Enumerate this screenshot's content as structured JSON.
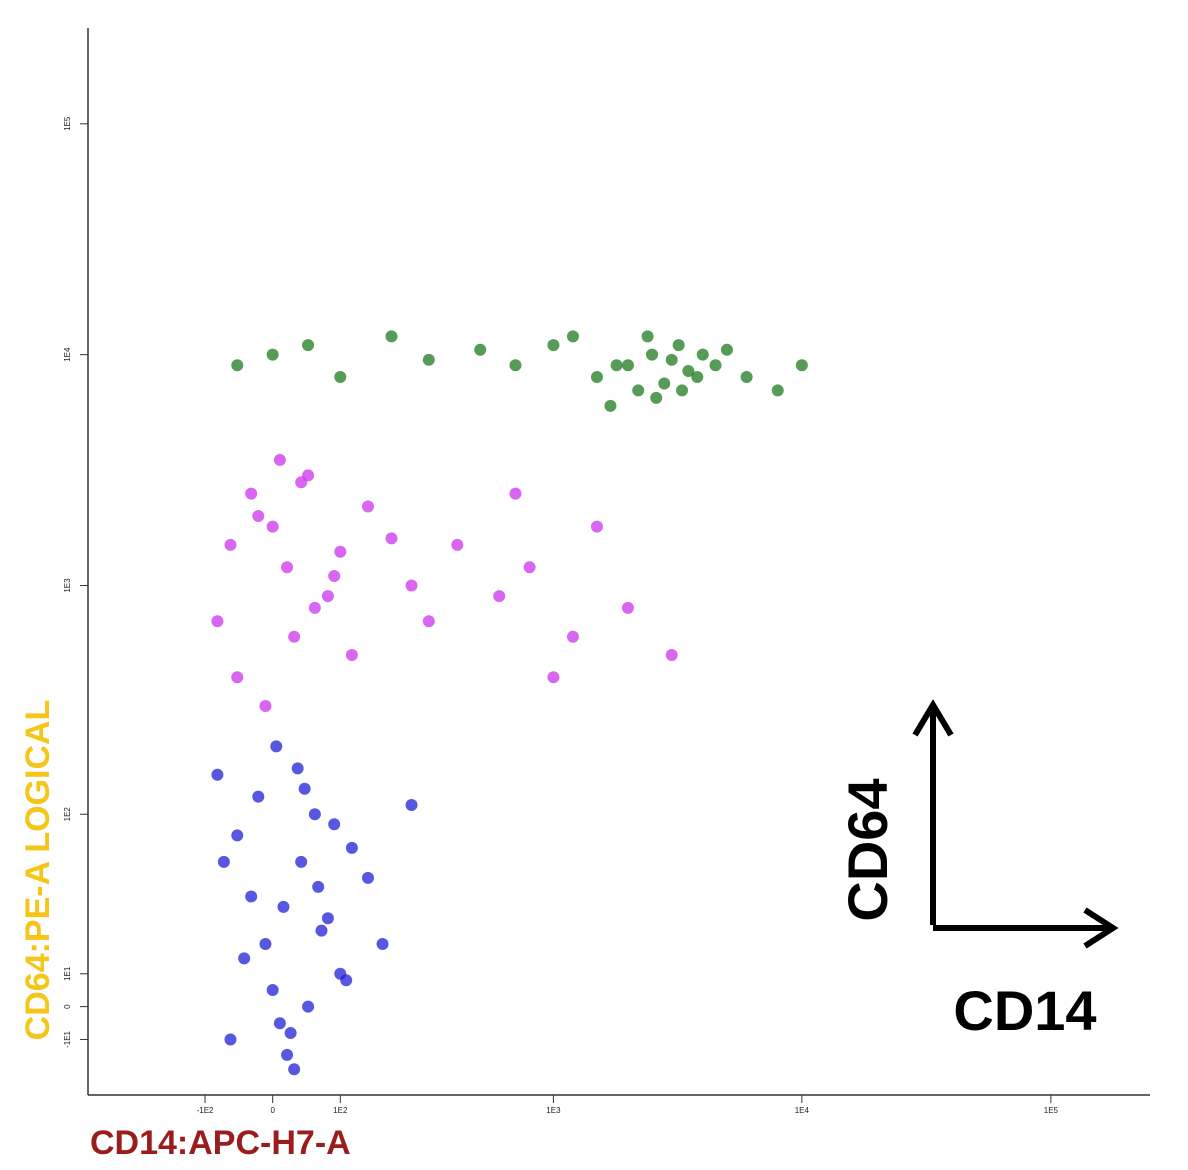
{
  "chart_data": {
    "type": "scatter",
    "xlabel": "CD14:APC-H7-A",
    "ylabel": "CD64:PE-A LOGICAL",
    "annotations": [
      "CD64",
      "CD14"
    ],
    "xscale": "logicle",
    "yscale": "logicle",
    "xlim": [
      -400,
      250000
    ],
    "ylim": [
      -30,
      260000
    ],
    "xticks": [
      {
        "value": -100,
        "label": "-1E2"
      },
      0,
      {
        "value": 100,
        "label": "1E2"
      },
      {
        "value": 1000,
        "label": "1E3"
      },
      {
        "value": 10000,
        "label": "1E4"
      },
      {
        "value": 100000,
        "label": "1E5"
      }
    ],
    "yticks": [
      {
        "value": -10,
        "label": "-1E1"
      },
      0,
      {
        "value": 10,
        "label": "1E1"
      },
      {
        "value": 100,
        "label": "1E2"
      },
      {
        "value": 1000,
        "label": "1E3"
      },
      {
        "value": 10000,
        "label": "1E4"
      },
      {
        "value": 100000,
        "label": "1E5"
      }
    ],
    "series": [
      {
        "color": "#1f1fd6",
        "x": [
          -80,
          -50,
          -30,
          -10,
          0,
          10,
          20,
          40,
          60,
          80,
          100,
          120,
          150,
          -60,
          -20,
          5,
          30,
          50,
          70,
          90,
          -40,
          15,
          35,
          65,
          110,
          180,
          250,
          -70,
          25,
          45
        ],
        "y": [
          150,
          80,
          40,
          20,
          5,
          -5,
          -15,
          60,
          100,
          30,
          10,
          70,
          50,
          -10,
          120,
          200,
          -20,
          0,
          25,
          90,
          15,
          35,
          160,
          45,
          8,
          20,
          110,
          60,
          -8,
          130
        ]
      },
      {
        "color": "#cc33ee",
        "x": [
          -60,
          -30,
          0,
          20,
          50,
          80,
          -80,
          -20,
          30,
          100,
          150,
          -50,
          10,
          60,
          120,
          200,
          250,
          -10,
          40,
          90,
          300,
          400,
          600,
          800,
          1200,
          1500,
          2000,
          3000,
          700,
          1000
        ],
        "y": [
          1500,
          2500,
          1800,
          1200,
          3000,
          900,
          700,
          2000,
          600,
          1400,
          2200,
          400,
          3500,
          800,
          500,
          1600,
          1000,
          300,
          2800,
          1100,
          700,
          1500,
          900,
          1200,
          600,
          1800,
          800,
          500,
          2500,
          400
        ]
      },
      {
        "color": "#1e7a1e",
        "x": [
          1500,
          2000,
          2500,
          3000,
          3500,
          4000,
          2200,
          2800,
          3200,
          1800,
          2600,
          3800,
          4500,
          5000,
          6000,
          1700,
          2400,
          3300,
          -50,
          0,
          50,
          100,
          200,
          300,
          500,
          700,
          1000,
          8000,
          10000,
          1200
        ],
        "y": [
          8000,
          9000,
          10000,
          9500,
          8500,
          10000,
          7000,
          7500,
          11000,
          9000,
          6500,
          8000,
          9000,
          10500,
          8000,
          6000,
          12000,
          7000,
          9000,
          10000,
          11000,
          8000,
          12000,
          9500,
          10500,
          9000,
          11000,
          7000,
          9000,
          12000
        ]
      }
    ]
  }
}
